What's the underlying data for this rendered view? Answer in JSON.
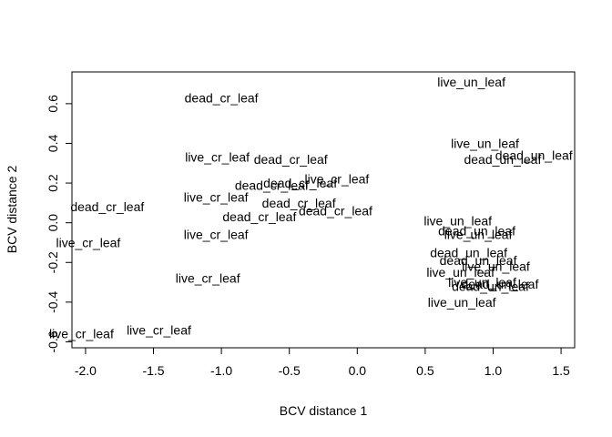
{
  "chart_data": {
    "type": "scatter",
    "title": "",
    "xlabel": "BCV distance 1",
    "ylabel": "BCV distance 2",
    "xlim": [
      -2.1,
      1.6
    ],
    "ylim": [
      -0.63,
      0.76
    ],
    "xticks": [
      -2.0,
      -1.5,
      -1.0,
      -0.5,
      0.0,
      0.5,
      1.0,
      1.5
    ],
    "xtick_labels": [
      "-2.0",
      "-1.5",
      "-1.0",
      "-0.5",
      "0.0",
      "0.5",
      "1.0",
      "1.5"
    ],
    "yticks": [
      -0.6,
      -0.4,
      -0.2,
      0.0,
      0.2,
      0.4,
      0.6
    ],
    "ytick_labels": [
      "-0.6",
      "-0.4",
      "-0.2",
      "0.0",
      "0.2",
      "0.4",
      "0.6"
    ],
    "grid": false,
    "markers": "text-labels",
    "points": [
      {
        "x": -1.0,
        "y": 0.63,
        "label": "dead_cr_leaf"
      },
      {
        "x": -1.03,
        "y": 0.33,
        "label": "live_cr_leaf"
      },
      {
        "x": -0.49,
        "y": 0.32,
        "label": "dead_cr_leaf"
      },
      {
        "x": -0.42,
        "y": 0.2,
        "label": "dead_cr_leaf"
      },
      {
        "x": -0.15,
        "y": 0.22,
        "label": "live_cr_leaf"
      },
      {
        "x": -0.63,
        "y": 0.19,
        "label": "dead_cr_leaf"
      },
      {
        "x": -1.04,
        "y": 0.13,
        "label": "live_cr_leaf"
      },
      {
        "x": -0.43,
        "y": 0.1,
        "label": "dead_cr_leaf"
      },
      {
        "x": -0.16,
        "y": 0.06,
        "label": "dead_cr_leaf"
      },
      {
        "x": -0.72,
        "y": 0.03,
        "label": "dead_cr_leaf"
      },
      {
        "x": -1.04,
        "y": -0.06,
        "label": "live_cr_leaf"
      },
      {
        "x": -1.84,
        "y": 0.08,
        "label": "dead_cr_leaf"
      },
      {
        "x": -1.98,
        "y": -0.1,
        "label": "live_cr_leaf"
      },
      {
        "x": -1.1,
        "y": -0.28,
        "label": "live_cr_leaf"
      },
      {
        "x": -1.46,
        "y": -0.54,
        "label": "live_cr_leaf"
      },
      {
        "x": -2.03,
        "y": -0.56,
        "label": "live_cr_leaf"
      },
      {
        "x": 0.84,
        "y": 0.71,
        "label": "live_un_leaf"
      },
      {
        "x": 0.94,
        "y": 0.4,
        "label": "live_un_leaf"
      },
      {
        "x": 1.3,
        "y": 0.34,
        "label": "dead_un_leaf"
      },
      {
        "x": 1.07,
        "y": 0.32,
        "label": "dead_un_leaf"
      },
      {
        "x": 0.74,
        "y": 0.01,
        "label": "live_un_leaf"
      },
      {
        "x": 0.88,
        "y": -0.04,
        "label": "dead_un_leaf"
      },
      {
        "x": 0.89,
        "y": -0.06,
        "label": "live_un_leaf"
      },
      {
        "x": 0.82,
        "y": -0.15,
        "label": "dead_un_leaf"
      },
      {
        "x": 0.89,
        "y": -0.19,
        "label": "dead_un_leaf"
      },
      {
        "x": 1.02,
        "y": -0.22,
        "label": "live_un_leaf"
      },
      {
        "x": 0.76,
        "y": -0.25,
        "label": "live_un_leaf"
      },
      {
        "x": 0.92,
        "y": -0.3,
        "label": "live_un_leaf"
      },
      {
        "x": 1.05,
        "y": -0.31,
        "label": "dead_un_leaf"
      },
      {
        "x": 0.98,
        "y": -0.32,
        "label": "dead_un_leaf"
      },
      {
        "x": 0.77,
        "y": -0.4,
        "label": "live_un_leaf"
      }
    ]
  }
}
